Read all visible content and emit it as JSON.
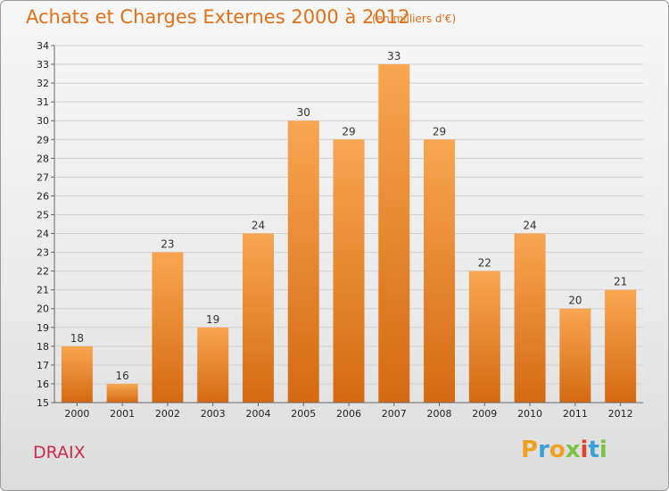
{
  "title": "Achats et Charges Externes 2000 à 2012",
  "subtitle": "(en milliers d'€)",
  "commune": "DRAIX",
  "logo": {
    "letters": [
      "P",
      "r",
      "o",
      "x",
      "i",
      "t",
      "i"
    ],
    "colors": [
      "#f0a020",
      "#3aa0d8",
      "#f0a020",
      "#7cc242",
      "#e0422a",
      "#3aa0d8",
      "#7cc242"
    ]
  },
  "colors": {
    "bar_top": "#f8a652",
    "bar_bottom": "#d46a12",
    "title": "#e0701a"
  },
  "chart_data": {
    "type": "bar",
    "categories": [
      "2000",
      "2001",
      "2002",
      "2003",
      "2004",
      "2005",
      "2006",
      "2007",
      "2008",
      "2009",
      "2010",
      "2011",
      "2012"
    ],
    "values": [
      18,
      16,
      23,
      19,
      24,
      30,
      29,
      33,
      29,
      22,
      24,
      20,
      21
    ],
    "xlabel": "",
    "ylabel": "",
    "ylim": [
      15,
      34
    ],
    "yticks": [
      15,
      16,
      17,
      18,
      19,
      20,
      21,
      22,
      23,
      24,
      25,
      26,
      27,
      28,
      29,
      30,
      31,
      32,
      33,
      34
    ],
    "grid": true,
    "legend": "none"
  }
}
